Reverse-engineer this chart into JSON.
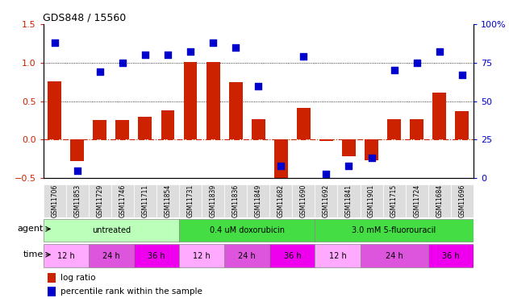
{
  "title": "GDS848 / 15560",
  "samples": [
    "GSM11706",
    "GSM11853",
    "GSM11729",
    "GSM11746",
    "GSM11711",
    "GSM11854",
    "GSM11731",
    "GSM11839",
    "GSM11836",
    "GSM11849",
    "GSM11682",
    "GSM11690",
    "GSM11692",
    "GSM11841",
    "GSM11901",
    "GSM11715",
    "GSM11724",
    "GSM11684",
    "GSM11696"
  ],
  "log_ratio": [
    0.76,
    -0.28,
    0.26,
    0.26,
    0.3,
    0.38,
    1.01,
    1.01,
    0.75,
    0.27,
    -0.55,
    0.41,
    -0.02,
    -0.22,
    -0.27,
    0.27,
    0.27,
    0.61,
    0.37
  ],
  "pct_rank": [
    88,
    5,
    69,
    75,
    80,
    80,
    82,
    88,
    85,
    60,
    8,
    79,
    3,
    8,
    13,
    70,
    75,
    82,
    67
  ],
  "ylim_left": [
    -0.5,
    1.5
  ],
  "ylim_right": [
    0,
    100
  ],
  "yticks_left": [
    -0.5,
    0.0,
    0.5,
    1.0,
    1.5
  ],
  "yticks_right": [
    0,
    25,
    50,
    75,
    100
  ],
  "bar_color": "#cc2200",
  "dot_color": "#0000cc",
  "zero_line_color": "#cc2200",
  "bar_width": 0.6,
  "dot_size": 38,
  "agent_groups": [
    {
      "label": "untreated",
      "start": 0,
      "end": 6,
      "color": "#bbffbb"
    },
    {
      "label": "0.4 uM doxorubicin",
      "start": 6,
      "end": 12,
      "color": "#44dd44"
    },
    {
      "label": "3.0 mM 5-fluorouracil",
      "start": 12,
      "end": 19,
      "color": "#44dd44"
    }
  ],
  "time_groups": [
    {
      "label": "12 h",
      "start": 0,
      "end": 2,
      "color": "#ffaaff"
    },
    {
      "label": "24 h",
      "start": 2,
      "end": 4,
      "color": "#dd55dd"
    },
    {
      "label": "36 h",
      "start": 4,
      "end": 6,
      "color": "#ee00ee"
    },
    {
      "label": "12 h",
      "start": 6,
      "end": 8,
      "color": "#ffaaff"
    },
    {
      "label": "24 h",
      "start": 8,
      "end": 10,
      "color": "#dd55dd"
    },
    {
      "label": "36 h",
      "start": 10,
      "end": 12,
      "color": "#ee00ee"
    },
    {
      "label": "12 h",
      "start": 12,
      "end": 14,
      "color": "#ffaaff"
    },
    {
      "label": "24 h",
      "start": 14,
      "end": 17,
      "color": "#dd55dd"
    },
    {
      "label": "36 h",
      "start": 17,
      "end": 19,
      "color": "#ee00ee"
    }
  ],
  "tick_color_left": "#cc2200",
  "tick_color_right": "#0000cc",
  "sample_box_color": "#dddddd"
}
